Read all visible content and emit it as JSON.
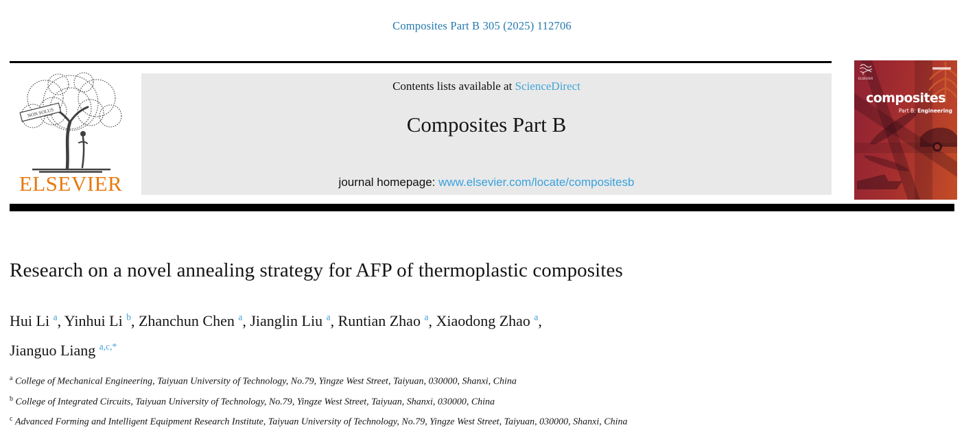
{
  "page": {
    "citation": "Composites Part B 305 (2025) 112706"
  },
  "masthead": {
    "contents_prefix": "Contents lists available at ",
    "sciencedirect_link": "ScienceDirect",
    "journal_title": "Composites Part B",
    "homepage_prefix": "journal homepage: ",
    "homepage_url": "www.elsevier.com/locate/compositesb",
    "elsevier_wordmark": "ELSEVIER",
    "elsevier_motto": "NON SOLUS",
    "cover": {
      "elsevier_mark": "ELSEVIER",
      "title": "composites",
      "subtitle_prefix": "Part B: ",
      "subtitle_emphasis": "Engineering"
    }
  },
  "article": {
    "title": "Research on a novel annealing strategy for AFP of thermoplastic composites",
    "authors_line1": [
      {
        "name": "Hui Li",
        "sup": "a"
      },
      {
        "name": "Yinhui Li",
        "sup": "b"
      },
      {
        "name": "Zhanchun Chen",
        "sup": "a"
      },
      {
        "name": "Jianglin Liu",
        "sup": "a"
      },
      {
        "name": "Runtian Zhao",
        "sup": "a"
      },
      {
        "name": "Xiaodong Zhao",
        "sup": "a"
      }
    ],
    "authors_line2": [
      {
        "name": "Jianguo Liang",
        "sup": "a,c,*"
      }
    ],
    "affiliations": [
      {
        "sup": "a",
        "text": "College of Mechanical Engineering, Taiyuan University of Technology, No.79, Yingze West Street, Taiyuan, 030000, Shanxi, China"
      },
      {
        "sup": "b",
        "text": "College of Integrated Circuits, Taiyuan University of Technology, No.79, Yingze West Street, Taiyuan, Shanxi, 030000, China"
      },
      {
        "sup": "c",
        "text": "Advanced Forming and Intelligent Equipment Research Institute, Taiyuan University of Technology, No.79, Yingze West Street, Taiyuan, 030000, Shanxi, China"
      }
    ]
  },
  "colors": {
    "citation_link": "#2579ae",
    "sciencedirect_link": "#42a5d8",
    "homepage_link": "#38a1dd",
    "author_sup_link": "#3e9ed8",
    "elsevier_orange": "#e8790f",
    "masthead_bg": "#e9e9e9",
    "rule_black": "#000000",
    "cover_red_dark": "#8e2133",
    "cover_red_light": "#c44d27"
  }
}
